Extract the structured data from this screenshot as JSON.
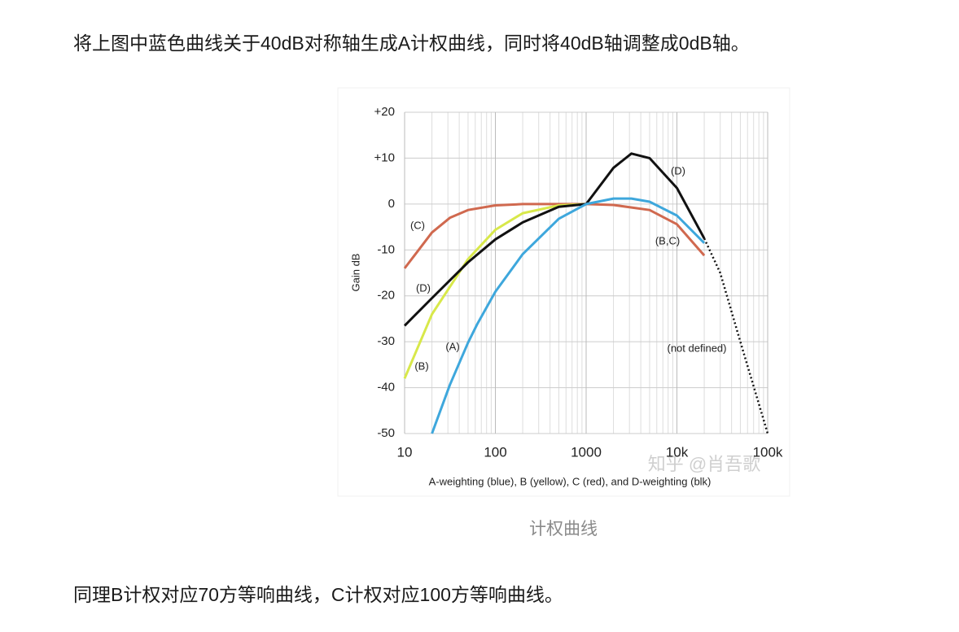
{
  "paragraphs": [
    "将上图中蓝色曲线关于40dB对称轴生成A计权曲线，同时将40dB轴调整成0dB轴。",
    "同理B计权对应70方等响曲线，C计权对应100方等响曲线。"
  ],
  "caption": "计权曲线",
  "watermark": "知乎 @肖吾歌",
  "chart_data": {
    "type": "line",
    "x_label": "A-weighting (blue), B (yellow), C (red), and D-weighting (blk)",
    "y_label": "Gain dB",
    "log_x": true,
    "grid": true,
    "xlim": [
      10,
      100000
    ],
    "xticks": [
      10,
      100,
      1000,
      {
        "value": 10000,
        "label": "10k"
      },
      {
        "value": 100000,
        "label": "100k"
      }
    ],
    "ylim": [
      -50,
      20
    ],
    "yticks": [
      {
        "value": 20,
        "label": "+20"
      },
      {
        "value": 10,
        "label": "+10"
      },
      0,
      -10,
      -20,
      -30,
      -40,
      -50
    ],
    "series": [
      {
        "name": "(C)",
        "color": "#d0694f",
        "x": [
          10,
          20,
          31.5,
          50,
          100,
          200,
          1000,
          2000,
          5000,
          10000,
          20000
        ],
        "values": [
          -14,
          -6.2,
          -3,
          -1.3,
          -0.3,
          0,
          0,
          -0.2,
          -1.3,
          -4.4,
          -11.2
        ]
      },
      {
        "name": "(B)",
        "color": "#d8e84a",
        "x": [
          10,
          20,
          50,
          100,
          200,
          500,
          1000
        ],
        "values": [
          -38,
          -24,
          -12,
          -5.6,
          -2,
          -0.3,
          0
        ]
      },
      {
        "name": "(D)",
        "color": "#111111",
        "x": [
          10,
          20,
          50,
          100,
          200,
          500,
          1000,
          2000,
          3150,
          5000,
          10000,
          20000
        ],
        "values": [
          -26.5,
          -20.5,
          -12.7,
          -7.7,
          -4,
          -0.6,
          0,
          7.9,
          11,
          10,
          3.5,
          -7.5
        ]
      },
      {
        "name": "(A)",
        "color": "#3ea7dc",
        "x": [
          20,
          31.5,
          50,
          63,
          100,
          200,
          500,
          1000,
          2000,
          3150,
          5000,
          10000,
          20000
        ],
        "values": [
          -50,
          -39.4,
          -30.2,
          -26.2,
          -19.1,
          -10.9,
          -3.2,
          0,
          1.2,
          1.2,
          0.5,
          -2.5,
          -8.5
        ]
      },
      {
        "name": "(not defined)",
        "color": "#111111",
        "style": "dotted",
        "x": [
          20000,
          30000,
          50000,
          100000
        ],
        "values": [
          -7.5,
          -15,
          -30,
          -50
        ]
      }
    ],
    "extra_labels": [
      "(B,C)"
    ]
  }
}
